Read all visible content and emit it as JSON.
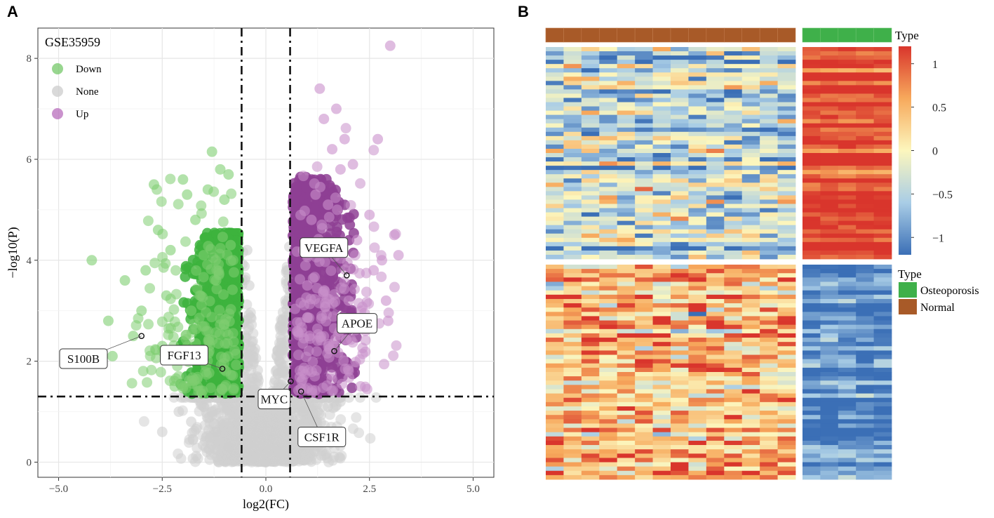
{
  "panels": {
    "a": "A",
    "b": "B"
  },
  "chart_data": [
    {
      "type": "scatter",
      "panel": "A",
      "title": "GSE35959",
      "xlabel": "log2(FC)",
      "ylabel": "−log10(P)",
      "xlim": [
        -5.5,
        5.5
      ],
      "ylim": [
        -0.3,
        8.6
      ],
      "xticks": [
        -5.0,
        -2.5,
        0.0,
        2.5,
        5.0
      ],
      "xtick_labels": [
        "−5.0",
        "−2.5",
        "0.0",
        "2.5",
        "5.0"
      ],
      "yticks": [
        0,
        2,
        4,
        6,
        8
      ],
      "ytick_labels": [
        "0",
        "2",
        "4",
        "6",
        "8"
      ],
      "thresholds": {
        "logfc": [
          -0.585,
          0.585
        ],
        "neglog10p": 1.3
      },
      "legend": [
        {
          "name": "Down",
          "color": "#6cc45f"
        },
        {
          "name": "None",
          "color": "#d0d0d0"
        },
        {
          "name": "Up",
          "color": "#b464b8"
        }
      ],
      "colors": {
        "down_dark": "#3db33d",
        "down_light": "#7fce71",
        "up_dark": "#8e3f94",
        "up_light": "#c98fcb",
        "none": "#cfcfcf"
      },
      "sample_points": {
        "down": [
          [
            -4.2,
            4.0
          ],
          [
            -3.8,
            2.8
          ],
          [
            -3.7,
            2.1
          ],
          [
            -3.4,
            3.6
          ],
          [
            -3.2,
            2.5
          ],
          [
            -3.0,
            3.0
          ],
          [
            -2.9,
            3.8
          ],
          [
            -2.7,
            5.5
          ],
          [
            -2.6,
            4.6
          ],
          [
            -2.5,
            2.3
          ],
          [
            -2.4,
            3.3
          ],
          [
            -2.3,
            4.2
          ],
          [
            -2.2,
            1.5
          ],
          [
            -2.0,
            5.6
          ],
          [
            -1.9,
            5.3
          ],
          [
            -1.8,
            3.0
          ],
          [
            -1.7,
            4.8
          ],
          [
            -1.6,
            2.1
          ],
          [
            -1.5,
            4.1
          ],
          [
            -1.4,
            5.4
          ],
          [
            -1.3,
            6.15
          ],
          [
            -1.2,
            3.6
          ],
          [
            -1.1,
            5.8
          ],
          [
            -1.0,
            5.2
          ],
          [
            -0.9,
            5.7
          ],
          [
            -0.85,
            4.3
          ]
        ],
        "up": [
          [
            0.9,
            4.2
          ],
          [
            1.0,
            3.5
          ],
          [
            1.1,
            4.8
          ],
          [
            1.2,
            5.3
          ],
          [
            1.3,
            7.4
          ],
          [
            1.4,
            6.8
          ],
          [
            1.5,
            5.1
          ],
          [
            1.6,
            6.2
          ],
          [
            1.7,
            7.0
          ],
          [
            1.8,
            5.8
          ],
          [
            1.9,
            6.4
          ],
          [
            2.0,
            3.2
          ],
          [
            2.1,
            5.9
          ],
          [
            2.2,
            4.4
          ],
          [
            2.3,
            3.0
          ],
          [
            2.4,
            2.6
          ],
          [
            2.5,
            4.9
          ],
          [
            2.6,
            3.8
          ],
          [
            2.7,
            6.4
          ],
          [
            2.8,
            4.0
          ],
          [
            2.9,
            3.2
          ],
          [
            3.0,
            8.25
          ],
          [
            3.1,
            4.5
          ],
          [
            3.2,
            4.1
          ],
          [
            2.95,
            2.8
          ],
          [
            1.05,
            2.5
          ]
        ],
        "none": [
          [
            -2.5,
            0.6
          ],
          [
            -2.1,
            1.0
          ],
          [
            -1.8,
            0.8
          ],
          [
            -1.5,
            1.1
          ],
          [
            -1.2,
            0.6
          ],
          [
            -0.9,
            0.3
          ],
          [
            -0.6,
            0.5
          ],
          [
            -0.3,
            0.1
          ],
          [
            0.0,
            0.0
          ],
          [
            0.3,
            0.2
          ],
          [
            0.6,
            0.6
          ],
          [
            0.9,
            1.0
          ],
          [
            1.2,
            0.8
          ],
          [
            1.5,
            1.1
          ],
          [
            1.8,
            1.2
          ],
          [
            -0.5,
            2.5
          ],
          [
            -0.4,
            3.5
          ],
          [
            0.4,
            2.8
          ],
          [
            -0.45,
            4.2
          ],
          [
            0.5,
            3.8
          ]
        ]
      },
      "highlighted_genes": [
        {
          "gene": "VEGFA",
          "x": 1.95,
          "y": 3.7
        },
        {
          "gene": "APOE",
          "x": 1.65,
          "y": 2.2
        },
        {
          "gene": "MYC",
          "x": 0.6,
          "y": 1.6
        },
        {
          "gene": "CSF1R",
          "x": 0.85,
          "y": 1.4
        },
        {
          "gene": "FGF13",
          "x": -1.05,
          "y": 1.85
        },
        {
          "gene": "S100B",
          "x": -3.0,
          "y": 2.5
        }
      ]
    },
    {
      "type": "heatmap",
      "panel": "B",
      "annotation_title": "Type",
      "groups": [
        {
          "name": "Normal",
          "color": "#a85a28",
          "samples": 14
        },
        {
          "name": "Osteoporosis",
          "color": "#3fb04a",
          "samples": 5
        }
      ],
      "gene_blocks": [
        {
          "name": "up_in_osteoporosis",
          "rows": 50
        },
        {
          "name": "down_in_osteoporosis",
          "rows": 50
        }
      ],
      "colorbar": {
        "title": "Type",
        "range": [
          -1.2,
          1.2
        ],
        "ticks": [
          1,
          0.5,
          0,
          -0.5,
          -1
        ],
        "tick_labels": [
          "1",
          "0.5",
          "0",
          "−0.5",
          "−1"
        ],
        "colors": [
          "#3b6fb6",
          "#a9cde6",
          "#fcf6bd",
          "#f7a95c",
          "#d9352c"
        ]
      },
      "block_means": {
        "top_normal": -0.4,
        "top_osteoporosis": 1.1,
        "bottom_normal": 0.45,
        "bottom_osteoporosis": -1.0
      }
    }
  ]
}
